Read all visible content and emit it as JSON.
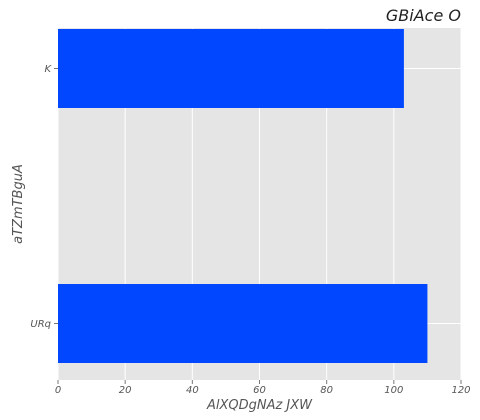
{
  "chart_data": {
    "type": "bar",
    "orientation": "horizontal",
    "title": "GBiAce  O",
    "xlabel": "AlXQDgNAz JXW",
    "ylabel": "aTZmTBguA",
    "categories": [
      "K",
      "URq"
    ],
    "values": [
      103,
      110
    ],
    "xlim": [
      0,
      120
    ],
    "xticks": [
      "0",
      "20",
      "40",
      "60",
      "80",
      "100",
      "120"
    ],
    "grid": true,
    "bar_color": "#0047ff",
    "plot_background": "#e5e5e5",
    "grid_color": "#ffffff"
  }
}
